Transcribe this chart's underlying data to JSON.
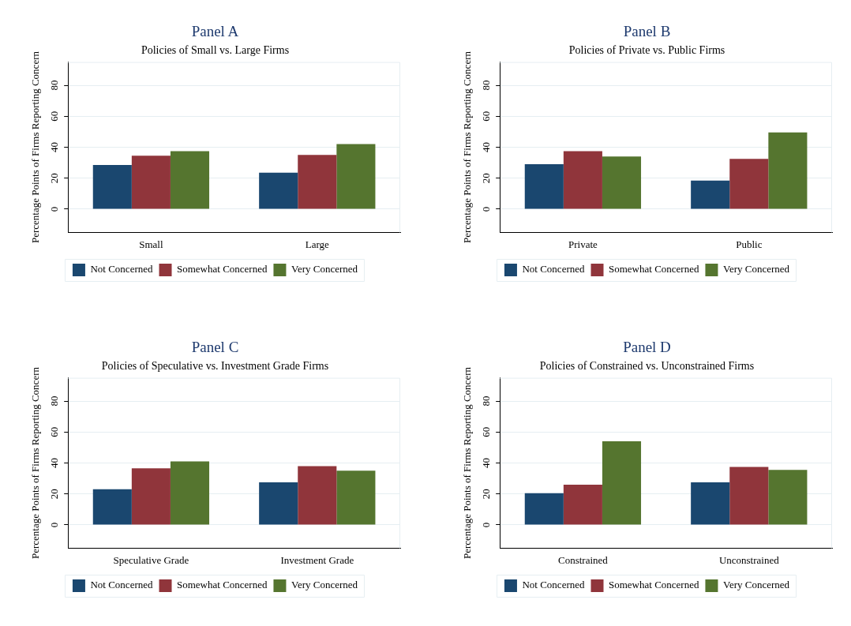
{
  "chart_data": [
    {
      "type": "bar",
      "title": "Panel A",
      "subtitle": "Policies of Small vs. Large Firms",
      "ylabel": "Percentage Points of Firms Reporting Concern",
      "categories": [
        "Small",
        "Large"
      ],
      "series": [
        {
          "name": "Not Concerned",
          "color": "#1a476f",
          "values": [
            28.5,
            23.5
          ]
        },
        {
          "name": "Somewhat Concerned",
          "color": "#90353b",
          "values": [
            34.5,
            35
          ]
        },
        {
          "name": "Very Concerned",
          "color": "#55752f",
          "values": [
            37.5,
            42
          ]
        }
      ],
      "ylim": [
        -15,
        95
      ],
      "yticks": [
        0,
        20,
        40,
        60,
        80
      ],
      "grid": "y",
      "legend": "bottom"
    },
    {
      "type": "bar",
      "title": "Panel B",
      "subtitle": "Policies of Private vs. Public Firms",
      "ylabel": "Percentage Points of Firms Reporting Concern",
      "categories": [
        "Private",
        "Public"
      ],
      "series": [
        {
          "name": "Not Concerned",
          "color": "#1a476f",
          "values": [
            29,
            18.5
          ]
        },
        {
          "name": "Somewhat Concerned",
          "color": "#90353b",
          "values": [
            37.5,
            32.5
          ]
        },
        {
          "name": "Very Concerned",
          "color": "#55752f",
          "values": [
            34,
            49.5
          ]
        }
      ],
      "ylim": [
        -15,
        95
      ],
      "yticks": [
        0,
        20,
        40,
        60,
        80
      ],
      "grid": "y",
      "legend": "bottom"
    },
    {
      "type": "bar",
      "title": "Panel C",
      "subtitle": "Policies of Speculative vs. Investment Grade Firms",
      "ylabel": "Percentage Points of Firms Reporting Concern",
      "categories": [
        "Speculative Grade",
        "Investment Grade"
      ],
      "series": [
        {
          "name": "Not Concerned",
          "color": "#1a476f",
          "values": [
            23,
            27.5
          ]
        },
        {
          "name": "Somewhat Concerned",
          "color": "#90353b",
          "values": [
            36.5,
            38
          ]
        },
        {
          "name": "Very Concerned",
          "color": "#55752f",
          "values": [
            41,
            35
          ]
        }
      ],
      "ylim": [
        -15,
        95
      ],
      "yticks": [
        0,
        20,
        40,
        60,
        80
      ],
      "grid": "y",
      "legend": "bottom"
    },
    {
      "type": "bar",
      "title": "Panel D",
      "subtitle": "Policies of Constrained vs. Unconstrained Firms",
      "ylabel": "Percentage Points of Firms Reporting Concern",
      "categories": [
        "Constrained",
        "Unconstrained"
      ],
      "series": [
        {
          "name": "Not Concerned",
          "color": "#1a476f",
          "values": [
            20.5,
            27.5
          ]
        },
        {
          "name": "Somewhat Concerned",
          "color": "#90353b",
          "values": [
            26,
            37.5
          ]
        },
        {
          "name": "Very Concerned",
          "color": "#55752f",
          "values": [
            54,
            35.5
          ]
        }
      ],
      "ylim": [
        -15,
        95
      ],
      "yticks": [
        0,
        20,
        40,
        60,
        80
      ],
      "grid": "y",
      "legend": "bottom"
    }
  ]
}
